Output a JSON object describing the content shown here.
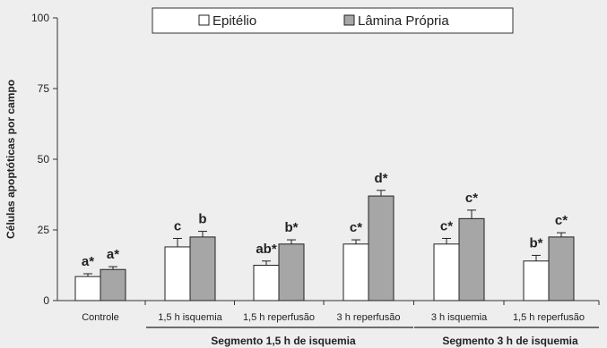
{
  "chart_data": {
    "type": "bar",
    "title": "",
    "xlabel": "",
    "ylabel": "Células apoptóticas por campo",
    "ylim": [
      0,
      100
    ],
    "yticks": [
      0,
      25,
      50,
      75,
      100
    ],
    "grid": false,
    "legend_position": "top",
    "categories": [
      "Controle",
      "1,5 h isquemia",
      "1,5 h reperfusão",
      "3 h reperfusão",
      "3 h isquemia",
      "1,5 h reperfusão"
    ],
    "series": [
      {
        "name": "Epitélio",
        "color": "#ffffff",
        "values": [
          8.5,
          19,
          12.5,
          20,
          20,
          14
        ],
        "errors": [
          1,
          3,
          1.5,
          1.5,
          2,
          2
        ],
        "labels": [
          "a*",
          "c",
          "ab*",
          "c*",
          "c*",
          "b*"
        ]
      },
      {
        "name": "Lâmina Própria",
        "color": "#a6a6a6",
        "values": [
          11,
          22.5,
          20,
          37,
          29,
          22.5
        ],
        "errors": [
          1,
          2,
          1.5,
          2,
          3,
          1.5
        ],
        "labels": [
          "a*",
          "b",
          "b*",
          "d*",
          "c*",
          "c*"
        ]
      }
    ],
    "groups": [
      {
        "label": "Segmento 1,5 h de isquemia",
        "from": 1,
        "to": 3
      },
      {
        "label": "Segmento 3 h de isquemia",
        "from": 4,
        "to": 5
      }
    ]
  }
}
